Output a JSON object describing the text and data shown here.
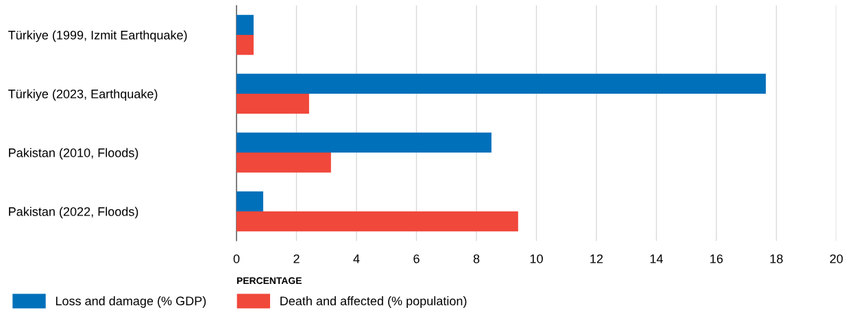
{
  "chart_data": {
    "type": "bar",
    "orientation": "horizontal",
    "xlabel": "PERCENTAGE",
    "categories": [
      "Türkiye (1999, Izmit Earthquake)",
      "Türkiye (2023, Earthquake)",
      "Pakistan (2010, Floods)",
      "Pakistan (2022, Floods)"
    ],
    "series": [
      {
        "name": "Loss and damage (% GDP)",
        "color": "#0070ba",
        "values": [
          0.57,
          17.65,
          8.5,
          0.89
        ]
      },
      {
        "name": "Death and affected (% population)",
        "color": "#f0483b",
        "values": [
          0.57,
          2.42,
          3.15,
          9.39
        ]
      }
    ],
    "xlim": [
      0,
      20
    ],
    "xticks": [
      0,
      2,
      4,
      6,
      8,
      10,
      12,
      14,
      16,
      18,
      20
    ],
    "grid": "x",
    "legend": "bottom"
  }
}
